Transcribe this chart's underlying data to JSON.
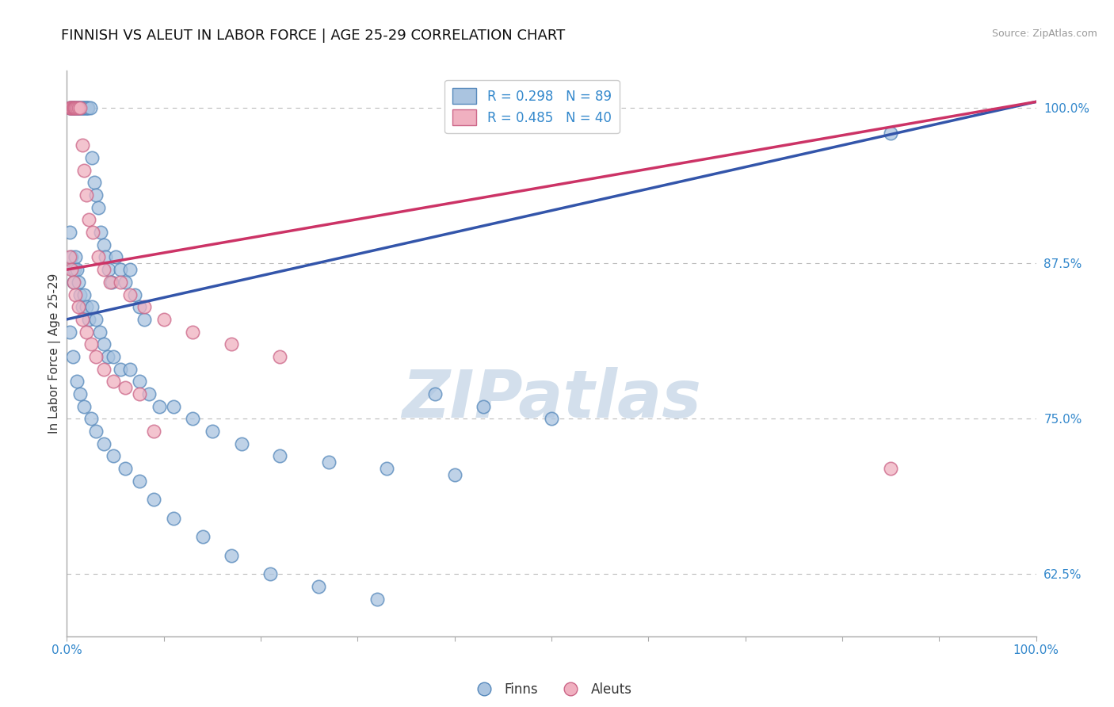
{
  "title": "FINNISH VS ALEUT IN LABOR FORCE | AGE 25-29 CORRELATION CHART",
  "source_text": "Source: ZipAtlas.com",
  "ylabel": "In Labor Force | Age 25-29",
  "xlim": [
    0.0,
    1.0
  ],
  "ylim": [
    0.575,
    1.03
  ],
  "xticks": [
    0.0,
    0.1,
    0.2,
    0.3,
    0.4,
    0.5,
    0.6,
    0.7,
    0.8,
    0.9,
    1.0
  ],
  "xticklabels": [
    "0.0%",
    "",
    "",
    "",
    "",
    "",
    "",
    "",
    "",
    "",
    "100.0%"
  ],
  "yticks": [
    0.625,
    0.75,
    0.875,
    1.0
  ],
  "yticklabels": [
    "62.5%",
    "75.0%",
    "87.5%",
    "100.0%"
  ],
  "grid_color": "#bbbbbb",
  "background_color": "#ffffff",
  "blue_color": "#aac4e0",
  "pink_color": "#f0b0c0",
  "blue_edge": "#5588bb",
  "pink_edge": "#cc6688",
  "line_blue": "#3355aa",
  "line_pink": "#cc3366",
  "legend_blue_label": "R = 0.298   N = 89",
  "legend_pink_label": "R = 0.485   N = 40",
  "finn_legend": "Finns",
  "aleut_legend": "Aleuts",
  "title_color": "#111111",
  "axis_label_color": "#333333",
  "tick_color": "#3388cc",
  "watermark_color": "#c8d8e8",
  "blue_line_y0": 0.83,
  "blue_line_y1": 1.005,
  "pink_line_y0": 0.87,
  "pink_line_y1": 1.005,
  "finns_x": [
    0.003,
    0.004,
    0.005,
    0.006,
    0.007,
    0.008,
    0.009,
    0.01,
    0.011,
    0.012,
    0.013,
    0.014,
    0.015,
    0.016,
    0.017,
    0.018,
    0.019,
    0.02,
    0.021,
    0.022,
    0.024,
    0.026,
    0.028,
    0.03,
    0.032,
    0.035,
    0.038,
    0.04,
    0.043,
    0.046,
    0.05,
    0.055,
    0.06,
    0.065,
    0.07,
    0.075,
    0.08,
    0.003,
    0.005,
    0.006,
    0.007,
    0.008,
    0.009,
    0.01,
    0.012,
    0.014,
    0.016,
    0.018,
    0.02,
    0.023,
    0.026,
    0.03,
    0.034,
    0.038,
    0.042,
    0.048,
    0.055,
    0.065,
    0.075,
    0.085,
    0.095,
    0.11,
    0.13,
    0.15,
    0.18,
    0.22,
    0.27,
    0.33,
    0.4,
    0.38,
    0.43,
    0.5,
    0.003,
    0.006,
    0.01,
    0.014,
    0.018,
    0.025,
    0.03,
    0.038,
    0.048,
    0.06,
    0.075,
    0.09,
    0.11,
    0.14,
    0.17,
    0.21,
    0.26,
    0.32,
    0.85
  ],
  "finns_y": [
    1.0,
    1.0,
    1.0,
    1.0,
    1.0,
    1.0,
    1.0,
    1.0,
    1.0,
    1.0,
    1.0,
    1.0,
    1.0,
    1.0,
    1.0,
    1.0,
    1.0,
    1.0,
    1.0,
    1.0,
    1.0,
    0.96,
    0.94,
    0.93,
    0.92,
    0.9,
    0.89,
    0.88,
    0.87,
    0.86,
    0.88,
    0.87,
    0.86,
    0.87,
    0.85,
    0.84,
    0.83,
    0.9,
    0.88,
    0.87,
    0.86,
    0.87,
    0.88,
    0.87,
    0.86,
    0.85,
    0.84,
    0.85,
    0.84,
    0.83,
    0.84,
    0.83,
    0.82,
    0.81,
    0.8,
    0.8,
    0.79,
    0.79,
    0.78,
    0.77,
    0.76,
    0.76,
    0.75,
    0.74,
    0.73,
    0.72,
    0.715,
    0.71,
    0.705,
    0.77,
    0.76,
    0.75,
    0.82,
    0.8,
    0.78,
    0.77,
    0.76,
    0.75,
    0.74,
    0.73,
    0.72,
    0.71,
    0.7,
    0.685,
    0.67,
    0.655,
    0.64,
    0.625,
    0.615,
    0.605,
    0.98
  ],
  "aleuts_x": [
    0.003,
    0.004,
    0.005,
    0.006,
    0.007,
    0.008,
    0.009,
    0.01,
    0.012,
    0.014,
    0.016,
    0.018,
    0.02,
    0.023,
    0.027,
    0.032,
    0.038,
    0.045,
    0.055,
    0.065,
    0.08,
    0.1,
    0.13,
    0.17,
    0.22,
    0.003,
    0.005,
    0.007,
    0.009,
    0.012,
    0.016,
    0.02,
    0.025,
    0.03,
    0.038,
    0.048,
    0.06,
    0.075,
    0.09,
    0.85
  ],
  "aleuts_y": [
    1.0,
    1.0,
    1.0,
    1.0,
    1.0,
    1.0,
    1.0,
    1.0,
    1.0,
    1.0,
    0.97,
    0.95,
    0.93,
    0.91,
    0.9,
    0.88,
    0.87,
    0.86,
    0.86,
    0.85,
    0.84,
    0.83,
    0.82,
    0.81,
    0.8,
    0.88,
    0.87,
    0.86,
    0.85,
    0.84,
    0.83,
    0.82,
    0.81,
    0.8,
    0.79,
    0.78,
    0.775,
    0.77,
    0.74,
    0.71
  ]
}
